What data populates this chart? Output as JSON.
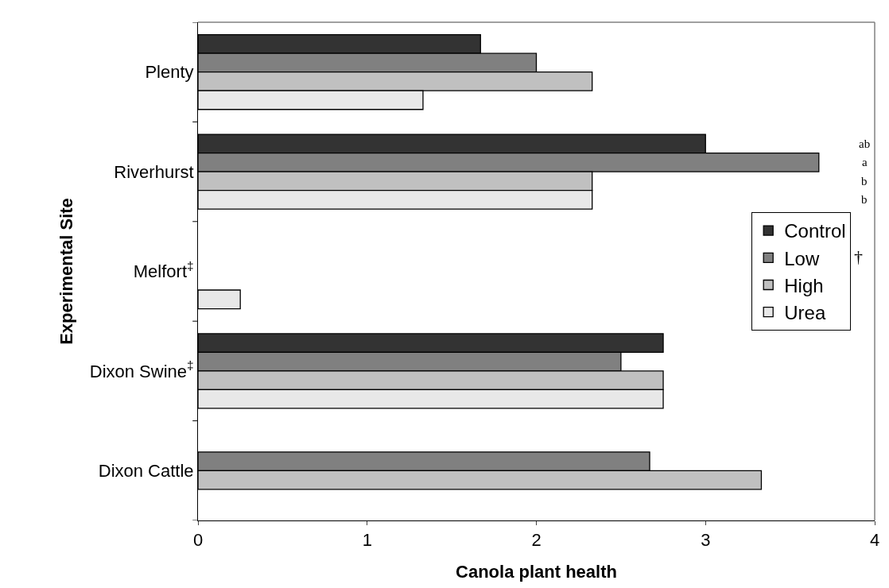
{
  "chart_data": {
    "type": "bar",
    "orientation": "horizontal",
    "xlabel": "Canola plant health",
    "ylabel": "Experimental Site",
    "categories": [
      "Plenty",
      "Riverhurst",
      "Melfort$^{‡}$",
      "Dixon Swine$^{‡}$",
      "Dixon Cattle"
    ],
    "series": [
      {
        "name": "Control",
        "color": "#333333",
        "values": [
          1.67,
          3.0,
          null,
          2.75,
          null
        ]
      },
      {
        "name": "Low",
        "color": "#808080",
        "values": [
          2.0,
          3.67,
          null,
          2.5,
          2.67
        ]
      },
      {
        "name": "High",
        "color": "#c0c0c0",
        "values": [
          2.33,
          2.33,
          null,
          2.75,
          3.33
        ]
      },
      {
        "name": "Urea",
        "color": "#e8e8e8",
        "values": [
          1.33,
          2.33,
          0.25,
          2.75,
          null
        ]
      }
    ],
    "xlim": [
      0,
      4
    ],
    "xticks": [
      0,
      1,
      2,
      3,
      4
    ],
    "legend": "right",
    "annotations": [
      "ab",
      "a",
      "b",
      "b",
      "†"
    ]
  }
}
